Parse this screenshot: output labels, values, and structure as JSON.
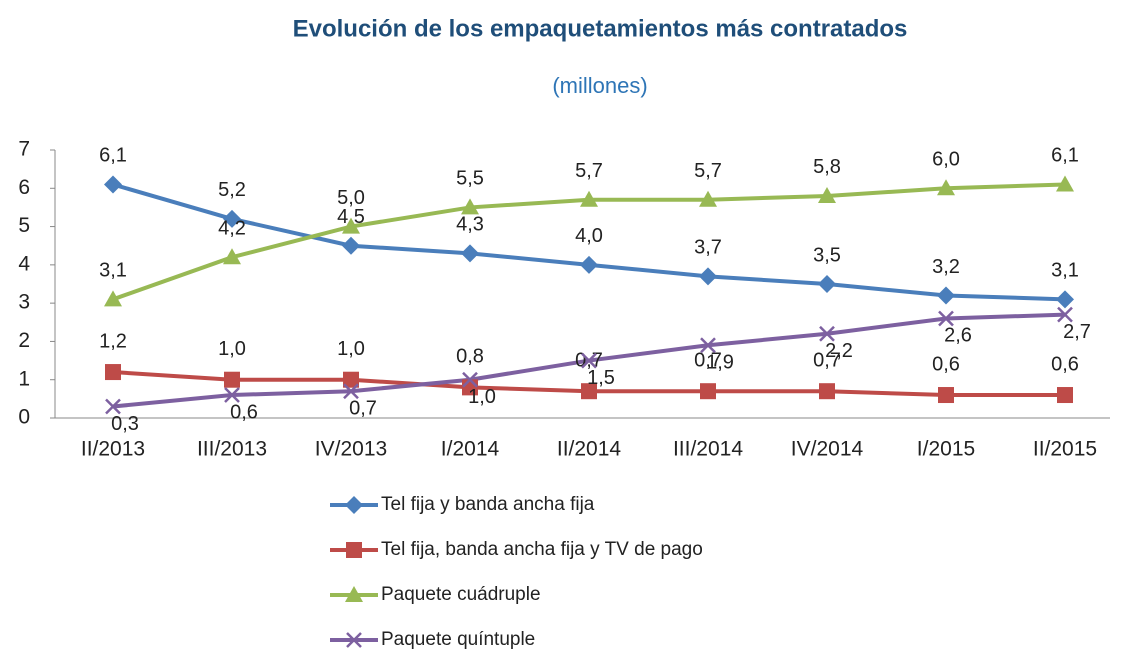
{
  "chart_data": {
    "type": "line",
    "title": "Evolución de los empaquetamientos más contratados",
    "subtitle": "(millones)",
    "categories": [
      "II/2013",
      "III/2013",
      "IV/2013",
      "I/2014",
      "II/2014",
      "III/2014",
      "IV/2014",
      "I/2015",
      "II/2015"
    ],
    "ylim": [
      0,
      7
    ],
    "yticks": [
      0,
      1,
      2,
      3,
      4,
      5,
      6,
      7
    ],
    "grid": false,
    "legend": "bottom",
    "series": [
      {
        "name": "Tel fija y banda ancha fija",
        "color": "#4a7ebb",
        "marker": "diamond",
        "values": [
          6.1,
          5.2,
          4.5,
          4.3,
          4.0,
          3.7,
          3.5,
          3.2,
          3.1
        ],
        "value_labels": [
          "6,1",
          "5,2",
          "4,5",
          "4,3",
          "4,0",
          "3,7",
          "3,5",
          "3,2",
          "3,1"
        ]
      },
      {
        "name": "Tel fija, banda ancha fija y TV de pago",
        "color": "#be4b48",
        "marker": "square",
        "values": [
          1.2,
          1.0,
          1.0,
          0.8,
          0.7,
          0.7,
          0.7,
          0.6,
          0.6
        ],
        "value_labels": [
          "1,2",
          "1,0",
          "1,0",
          "0,8",
          "0,7",
          "0,7",
          "0,7",
          "0,6",
          "0,6"
        ]
      },
      {
        "name": "Paquete cuádruple",
        "color": "#98b954",
        "marker": "triangle",
        "values": [
          3.1,
          4.2,
          5.0,
          5.5,
          5.7,
          5.7,
          5.8,
          6.0,
          6.1
        ],
        "value_labels": [
          "3,1",
          "4,2",
          "5,0",
          "5,5",
          "5,7",
          "5,7",
          "5,8",
          "6,0",
          "6,1"
        ]
      },
      {
        "name": "Paquete quíntuple",
        "color": "#7d60a0",
        "marker": "x",
        "values": [
          0.3,
          0.6,
          0.7,
          1.0,
          1.5,
          1.9,
          2.2,
          2.6,
          2.7
        ],
        "value_labels": [
          "0,3",
          "0,6",
          "0,7",
          "1,0",
          "1,5",
          "1,9",
          "2,2",
          "2,6",
          "2,7"
        ]
      }
    ]
  }
}
